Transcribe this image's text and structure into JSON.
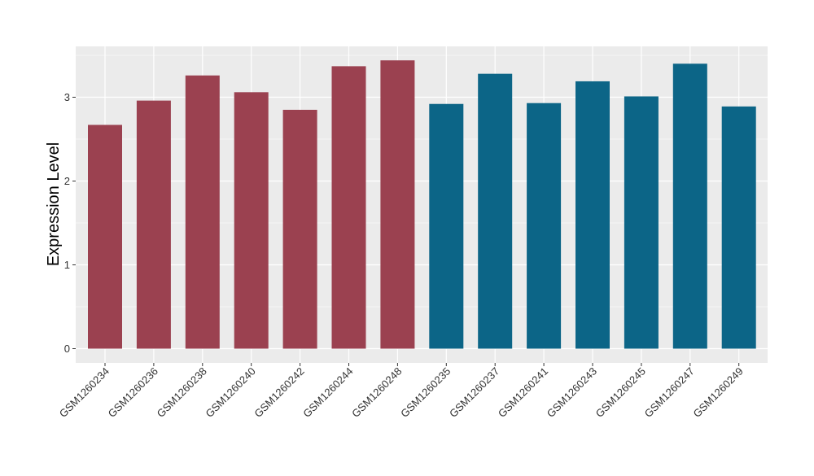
{
  "chart_data": {
    "type": "bar",
    "title": "",
    "xlabel": "",
    "ylabel": "Expression Level",
    "ylim": [
      -0.18,
      3.6
    ],
    "yticks": [
      0,
      1,
      2,
      3
    ],
    "grid": true,
    "categories": [
      "GSM1260234",
      "GSM1260236",
      "GSM1260238",
      "GSM1260240",
      "GSM1260242",
      "GSM1260244",
      "GSM1260248",
      "GSM1260235",
      "GSM1260237",
      "GSM1260241",
      "GSM1260243",
      "GSM1260245",
      "GSM1260247",
      "GSM1260249"
    ],
    "values": [
      2.67,
      2.96,
      3.26,
      3.06,
      2.85,
      3.37,
      3.44,
      2.92,
      3.28,
      2.93,
      3.19,
      3.01,
      3.4,
      2.89
    ],
    "groups": [
      0,
      0,
      0,
      0,
      0,
      0,
      0,
      1,
      1,
      1,
      1,
      1,
      1,
      1
    ],
    "group_colors": [
      "#9B4150",
      "#0C6587"
    ],
    "panel_color": "#EBEBEB",
    "grid_color": "#FFFFFF"
  }
}
